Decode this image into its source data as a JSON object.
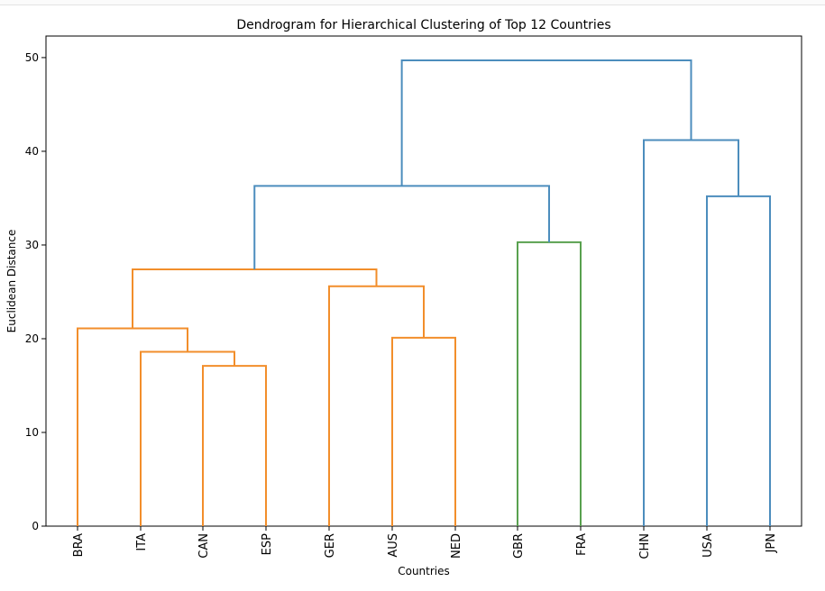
{
  "chart_data": {
    "type": "dendrogram",
    "title": "Dendrogram for Hierarchical Clustering of Top 12 Countries",
    "xlabel": "Countries",
    "ylabel": "Euclidean Distance",
    "ylim": [
      0,
      52.3
    ],
    "yticks": [
      0,
      10,
      20,
      30,
      40,
      50
    ],
    "leaves": [
      "BRA",
      "ITA",
      "CAN",
      "ESP",
      "GER",
      "AUS",
      "NED",
      "GBR",
      "FRA",
      "CHN",
      "USA",
      "JPN"
    ],
    "merges": [
      {
        "children": [
          "CAN",
          "ESP"
        ],
        "height": 17.1,
        "color": "#f28e2b"
      },
      {
        "children": [
          "ITA",
          "CAN+ESP"
        ],
        "height": 18.6,
        "color": "#f28e2b"
      },
      {
        "children": [
          "AUS",
          "NED"
        ],
        "height": 20.1,
        "color": "#f28e2b"
      },
      {
        "children": [
          "BRA",
          "ITA+CAN+ESP"
        ],
        "height": 21.1,
        "color": "#f28e2b"
      },
      {
        "children": [
          "GER",
          "AUS+NED"
        ],
        "height": 25.6,
        "color": "#f28e2b"
      },
      {
        "children": [
          "BRA+ITA+CAN+ESP",
          "GER+AUS+NED"
        ],
        "height": 27.4,
        "color": "#f28e2b"
      },
      {
        "children": [
          "GBR",
          "FRA"
        ],
        "height": 30.3,
        "color": "#59a14f"
      },
      {
        "children": [
          "USA",
          "JPN"
        ],
        "height": 35.2,
        "color": "#4c8dbd"
      },
      {
        "children": [
          "BRA+ITA+CAN+ESP+GER+AUS+NED",
          "GBR+FRA"
        ],
        "height": 36.3,
        "color": "#4c8dbd"
      },
      {
        "children": [
          "CHN",
          "USA+JPN"
        ],
        "height": 41.2,
        "color": "#4c8dbd"
      },
      {
        "children": [
          "BRA+ITA+CAN+ESP+GER+AUS+NED+GBR+FRA",
          "CHN+USA+JPN"
        ],
        "height": 49.7,
        "color": "#4c8dbd"
      }
    ],
    "grid": false,
    "legend": "none"
  }
}
